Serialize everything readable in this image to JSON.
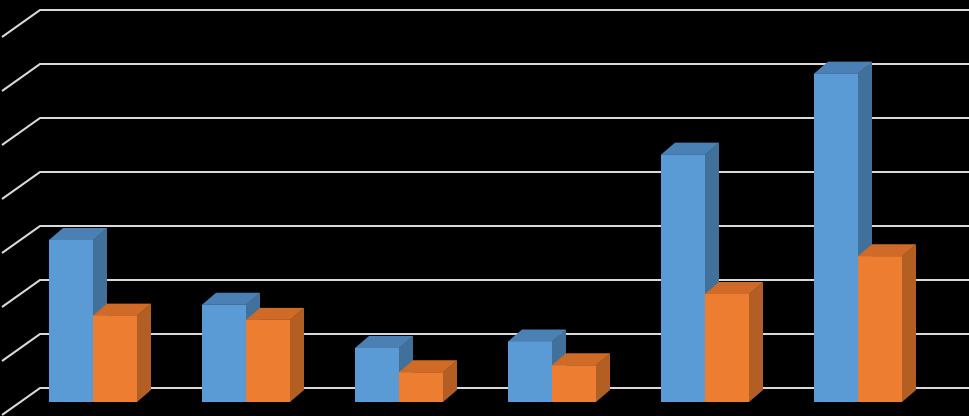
{
  "chart_data": {
    "type": "bar",
    "style": "3d-clustered-column",
    "background": "#000000",
    "grid": true,
    "gridline_color": "#d9d9d9",
    "title": "",
    "xlabel": "",
    "ylabel": "",
    "ylim": [
      0,
      7
    ],
    "gridline_count": 7,
    "legend": "none",
    "categories": [
      "",
      "",
      "",
      "",
      "",
      ""
    ],
    "series": [
      {
        "color": "#5b9bd5",
        "side_color": "#41709b",
        "top_color": "#4a80b3",
        "values": [
          3.0,
          1.8,
          1.0,
          1.12,
          4.58,
          6.08
        ]
      },
      {
        "color": "#ed7d31",
        "side_color": "#b35e22",
        "top_color": "#cf6b27",
        "values": [
          1.6,
          1.52,
          0.55,
          0.68,
          2.0,
          2.7
        ]
      }
    ]
  }
}
